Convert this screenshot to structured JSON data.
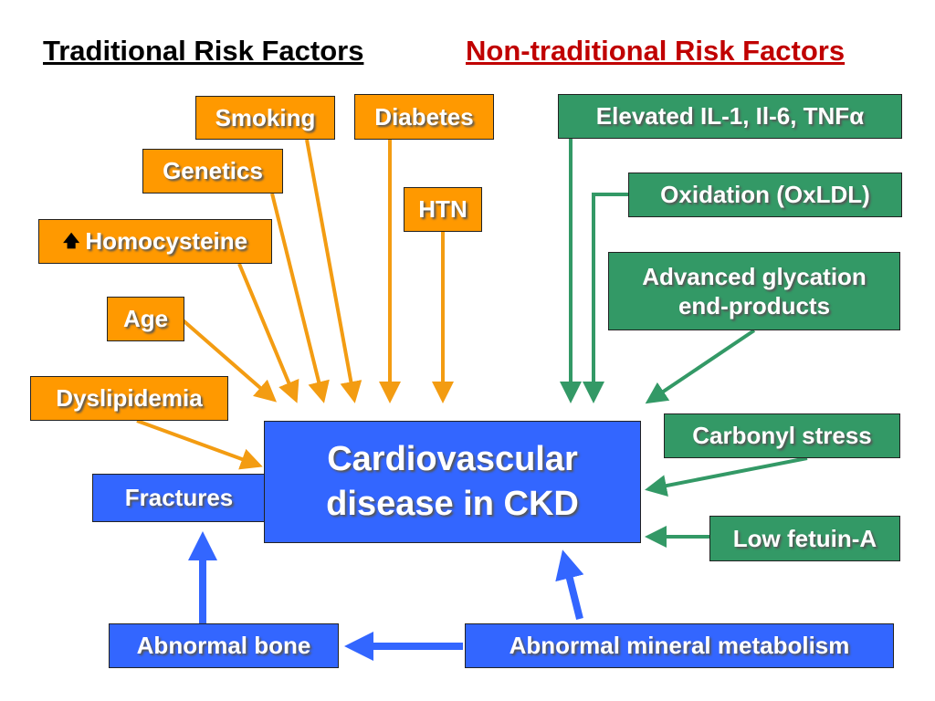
{
  "headers": {
    "traditional": "Traditional Risk Factors",
    "non_traditional": "Non-traditional Risk Factors"
  },
  "traditional": {
    "smoking": "Smoking",
    "diabetes": "Diabetes",
    "genetics": "Genetics",
    "htn": "HTN",
    "homocysteine": "Homocysteine",
    "homocysteine_icon": "up-arrow",
    "age": "Age",
    "dyslipidemia": "Dyslipidemia"
  },
  "non_traditional": {
    "cytokines": "Elevated IL-1, Il-6, TNFα",
    "oxidation": "Oxidation (OxLDL)",
    "age_products_line1": "Advanced glycation",
    "age_products_line2": "end-products",
    "carbonyl": "Carbonyl stress",
    "fetuin": "Low fetuin-A"
  },
  "center": {
    "line1": "Cardiovascular",
    "line2": "disease in CKD"
  },
  "bone": {
    "fractures": "Fractures",
    "abnormal_bone": "Abnormal bone",
    "mineral": "Abnormal mineral metabolism"
  },
  "colors": {
    "orange": "#ff9900",
    "green": "#339966",
    "blue": "#3366ff",
    "red_header": "#c00000"
  }
}
